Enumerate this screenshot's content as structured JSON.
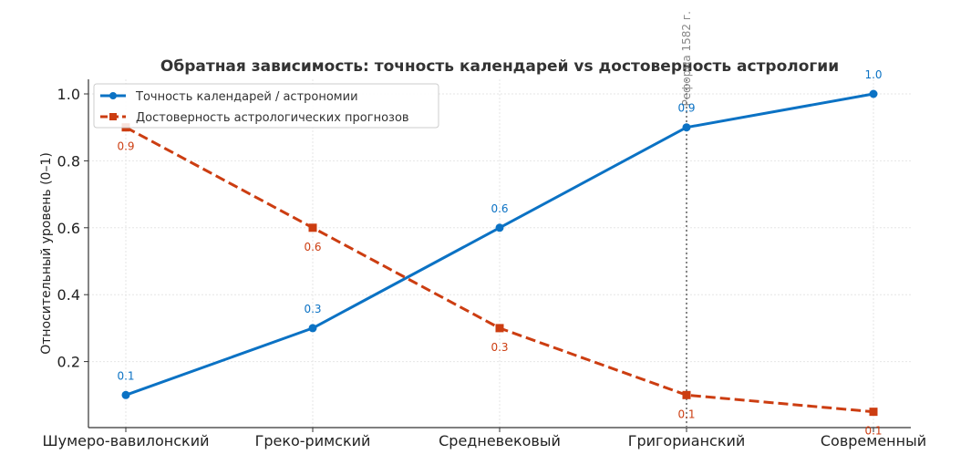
{
  "chart_data": {
    "type": "line",
    "title": "Обратная зависимость: точность календарей vs достоверность астрологии",
    "xlabel": "",
    "ylabel": "Относительный уровень (0–1)",
    "categories": [
      "Шумеро-вавилонский",
      "Греко-римский",
      "Средневековый",
      "Григорианский",
      "Современный"
    ],
    "ylim": [
      0,
      1.0
    ],
    "yticks": [
      0.2,
      0.4,
      0.6,
      0.8,
      1.0
    ],
    "y_tick_labels": [
      "0.2",
      "0.4",
      "0.6",
      "0.8",
      "1.0"
    ],
    "grid": true,
    "legend_position": "top-left",
    "series": [
      {
        "name": "Точность календарей / астрономии",
        "values": [
          0.1,
          0.3,
          0.6,
          0.9,
          1.0
        ],
        "value_labels": [
          "0.1",
          "0.3",
          "0.6",
          "0.9",
          "1.0"
        ],
        "color": "#0b72c4",
        "marker": "circle",
        "line_style": "solid"
      },
      {
        "name": "Достоверность астрологических прогнозов",
        "values": [
          0.9,
          0.6,
          0.3,
          0.1,
          0.05
        ],
        "value_labels": [
          "0.9",
          "0.6",
          "0.3",
          "0.1",
          "0.1"
        ],
        "color": "#cc3d11",
        "marker": "square",
        "line_style": "dashed"
      }
    ],
    "annotations": [
      {
        "text": "Реформа 1582 г.",
        "category": "Григорианский",
        "style": "dotted-vertical-line",
        "color": "#888888"
      }
    ]
  }
}
